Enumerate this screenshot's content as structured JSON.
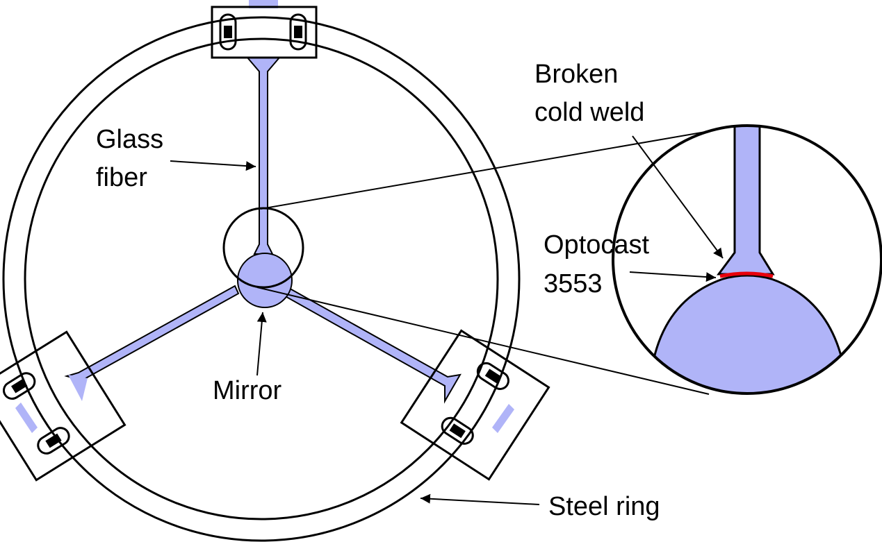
{
  "diagram": {
    "labels": {
      "glass_fiber_line1": "Glass",
      "glass_fiber_line2": "fiber",
      "mirror": "Mirror",
      "steel_ring": "Steel ring",
      "broken_line1": "Broken",
      "broken_line2": "cold weld",
      "optocast_line1": "Optocast",
      "optocast_line2": "3553"
    },
    "colors": {
      "glass": "#b0b4f8",
      "glue_layer": "#e8000b",
      "outline": "#000000",
      "background": "#ffffff"
    }
  }
}
